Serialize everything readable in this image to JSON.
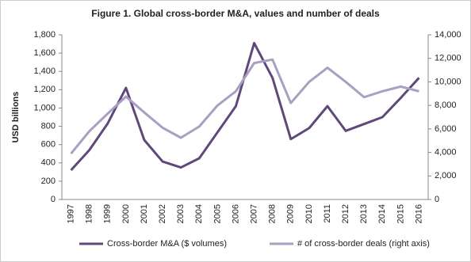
{
  "chart_data": {
    "type": "line",
    "title": "Figure 1. Global cross-border M&A, values and number of deals",
    "y_label": "USD billions",
    "categories": [
      "1997",
      "1998",
      "1999",
      "2000",
      "2001",
      "2002",
      "2003",
      "2004",
      "2005",
      "2006",
      "2007",
      "2008",
      "2009",
      "2010",
      "2011",
      "2012",
      "2013",
      "2014",
      "2015",
      "2016"
    ],
    "series": [
      {
        "name": "Cross-border M&A ($ volumes)",
        "color": "#60497a",
        "values": [
          320,
          540,
          830,
          1220,
          650,
          415,
          350,
          450,
          735,
          1020,
          1710,
          1330,
          660,
          780,
          1020,
          750,
          825,
          900,
          1110,
          1330
        ]
      },
      {
        "name": "# of cross-border deals (right axis)",
        "color": "#a99fc2",
        "axis": "y2",
        "values": [
          3900,
          5800,
          7300,
          8750,
          7400,
          6100,
          5250,
          6200,
          8000,
          9200,
          11600,
          11900,
          8200,
          10000,
          11200,
          10000,
          8700,
          9200,
          9600,
          9200
        ]
      }
    ],
    "ylim": [
      0,
      1800
    ],
    "yticks": [
      0,
      200,
      400,
      600,
      800,
      {
        "value": 1000,
        "label": "1,000"
      },
      {
        "value": 1200,
        "label": "1,200"
      },
      {
        "value": 1400,
        "label": "1,400"
      },
      {
        "value": 1600,
        "label": "1,600"
      },
      {
        "value": 1800,
        "label": "1,800"
      }
    ],
    "y2lim": [
      0,
      14000
    ],
    "y2ticks": [
      0,
      {
        "value": 2000,
        "label": "2,000"
      },
      {
        "value": 4000,
        "label": "4,000"
      },
      {
        "value": 6000,
        "label": "6,000"
      },
      {
        "value": 8000,
        "label": "8,000"
      },
      {
        "value": 10000,
        "label": "10,000"
      },
      {
        "value": 12000,
        "label": "12,000"
      },
      {
        "value": 14000,
        "label": "14,000"
      }
    ],
    "grid": false,
    "legend": "bottom"
  }
}
